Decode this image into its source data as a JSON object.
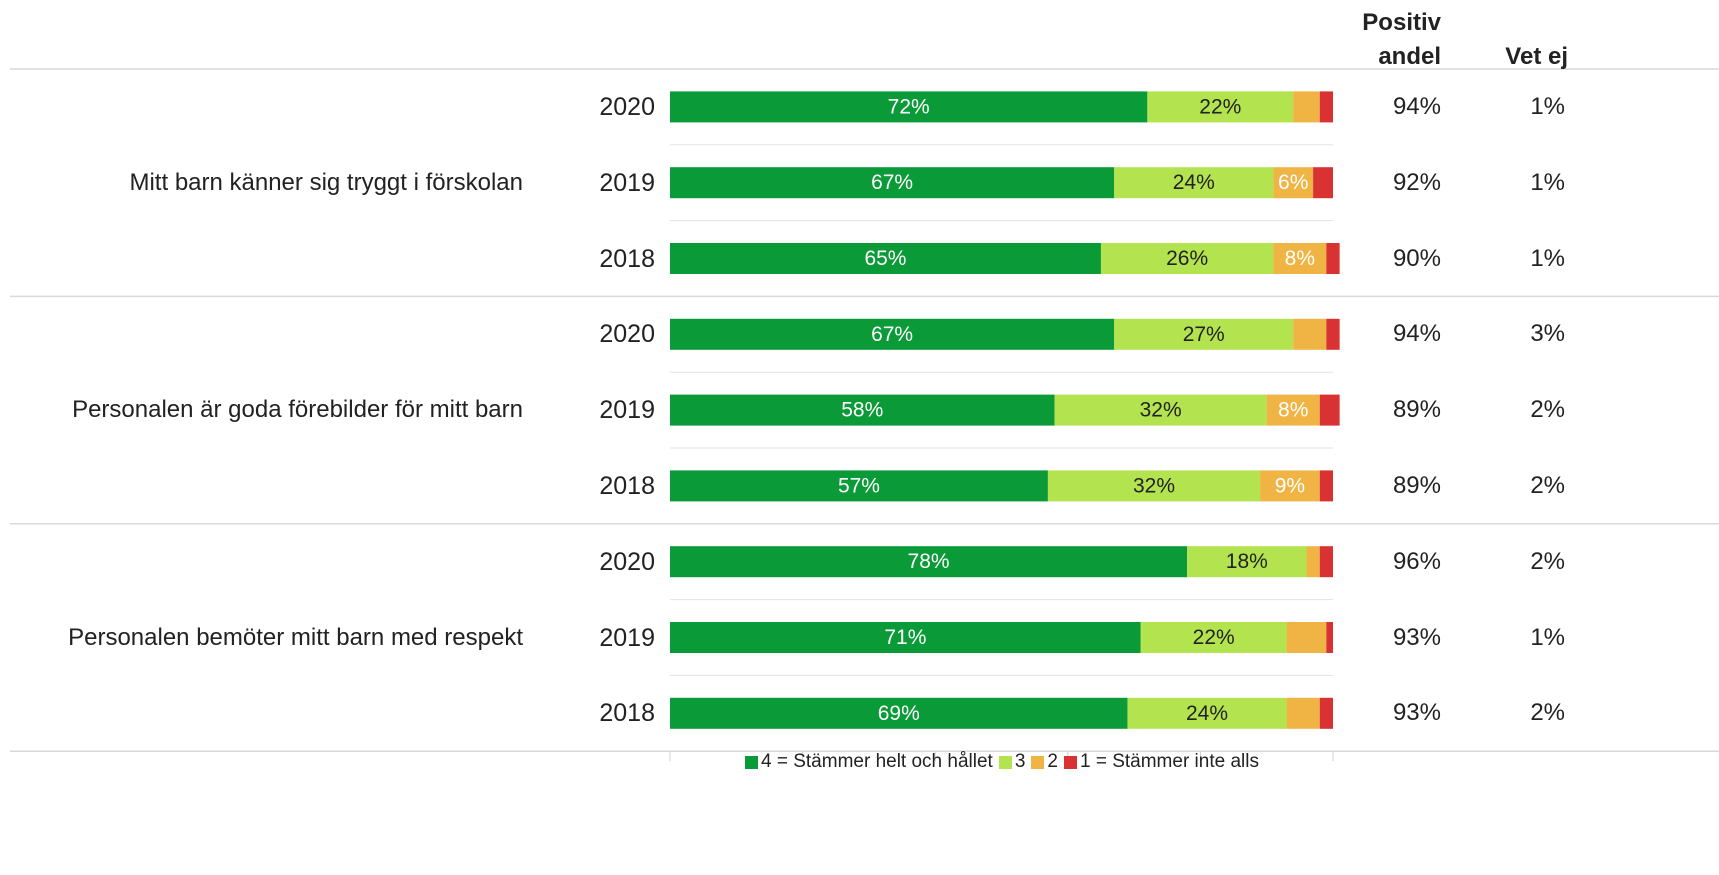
{
  "chart_data": {
    "type": "stacked_barh",
    "group_labels": [
      "Mitt barn känner sig tryggt i förskolan",
      "Personalen är goda förebilder för mitt barn",
      "Personalen bemöter mitt barn med respekt"
    ],
    "categories": [
      "2020",
      "2019",
      "2018",
      "2020",
      "2019",
      "2018",
      "2020",
      "2019",
      "2018"
    ],
    "series": [
      {
        "name": "4 = Stämmer helt och hållet",
        "color": "#0a9a38",
        "text_color": "#ffffff",
        "values": [
          72,
          67,
          65,
          67,
          58,
          57,
          78,
          71,
          69
        ],
        "value_labels": [
          "72%",
          "67%",
          "65%",
          "67%",
          "58%",
          "57%",
          "78%",
          "71%",
          "69%"
        ]
      },
      {
        "name": "3",
        "color": "#b3e34e",
        "text_color": "#222222",
        "values": [
          22,
          24,
          26,
          27,
          32,
          32,
          18,
          22,
          24
        ],
        "value_labels": [
          "22%",
          "24%",
          "26%",
          "27%",
          "32%",
          "32%",
          "18%",
          "22%",
          "24%"
        ]
      },
      {
        "name": "2",
        "color": "#f0b444",
        "text_color": "#ffffff",
        "values": [
          4,
          6,
          8,
          5,
          8,
          9,
          2,
          6,
          5
        ],
        "value_labels": [
          null,
          "6%",
          "8%",
          null,
          "8%",
          "9%",
          null,
          null,
          null
        ]
      },
      {
        "name": "1 = Stämmer inte alls",
        "color": "#d83232",
        "text_color": "#ffffff",
        "values": [
          2,
          3,
          2,
          2,
          3,
          2,
          2,
          1,
          2
        ],
        "value_labels": [
          null,
          null,
          null,
          null,
          null,
          null,
          null,
          null,
          null
        ]
      }
    ],
    "columns": [
      {
        "header": "Positiv\nandel",
        "values": [
          94,
          92,
          90,
          94,
          89,
          89,
          96,
          93,
          93
        ],
        "value_labels": [
          "94%",
          "92%",
          "90%",
          "94%",
          "89%",
          "89%",
          "96%",
          "93%",
          "93%"
        ]
      },
      {
        "header": "Vet ej",
        "values": [
          1,
          1,
          1,
          3,
          2,
          2,
          2,
          1,
          2
        ],
        "value_labels": [
          "1%",
          "1%",
          "1%",
          "3%",
          "2%",
          "2%",
          "2%",
          "1%",
          "2%"
        ]
      }
    ],
    "xlim": [
      0,
      100
    ],
    "xticks": [
      0,
      20,
      40,
      60,
      80,
      100
    ],
    "legend": "bottom"
  }
}
